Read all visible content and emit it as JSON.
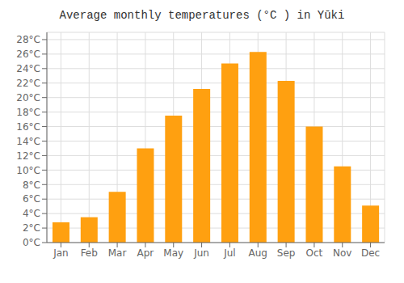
{
  "chart_data": {
    "type": "bar",
    "title": "Average monthly temperatures (°C ) in Yūki",
    "categories": [
      "Jan",
      "Feb",
      "Mar",
      "Apr",
      "May",
      "Jun",
      "Jul",
      "Aug",
      "Sep",
      "Oct",
      "Nov",
      "Dec"
    ],
    "values": [
      2.8,
      3.5,
      7.0,
      13.0,
      17.5,
      21.2,
      24.7,
      26.3,
      22.3,
      16.0,
      10.5,
      5.1
    ],
    "color": "#FFA010",
    "ylim": [
      0,
      29
    ],
    "yticks": [
      {
        "value": 0,
        "label": "0°C"
      },
      {
        "value": 2,
        "label": "2°C"
      },
      {
        "value": 4,
        "label": "4°C"
      },
      {
        "value": 6,
        "label": "6°C"
      },
      {
        "value": 8,
        "label": "8°C"
      },
      {
        "value": 10,
        "label": "10°C"
      },
      {
        "value": 12,
        "label": "12°C"
      },
      {
        "value": 14,
        "label": "14°C"
      },
      {
        "value": 16,
        "label": "16°C"
      },
      {
        "value": 18,
        "label": "18°C"
      },
      {
        "value": 20,
        "label": "20°C"
      },
      {
        "value": 22,
        "label": "22°C"
      },
      {
        "value": 24,
        "label": "24°C"
      },
      {
        "value": 26,
        "label": "26°C"
      },
      {
        "value": 28,
        "label": "28°C"
      }
    ],
    "grid": true
  }
}
